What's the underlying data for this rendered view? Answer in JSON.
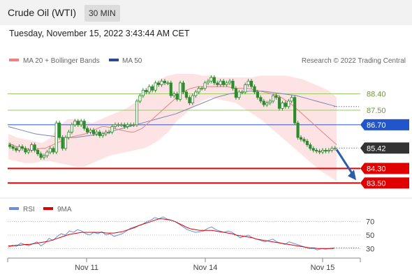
{
  "header": {
    "title": "Crude Oil (WTI)",
    "interval": "30 MIN"
  },
  "timestamp": "Tuesday, November 15, 2022 3:43:44 AM CET",
  "legend": {
    "ma20": "MA 20 + Bollinger Bands",
    "ma50": "MA 50",
    "copyright": "Research © 2022 Trading Central",
    "rsi": "RSI",
    "nine_ma": "9MA"
  },
  "colors": {
    "candle": "#2e8b2e",
    "ma20": "#f08080",
    "band": "#fde0e0",
    "ma50": "#7a86b8",
    "support": "#e00000",
    "pivot": "#2255cc",
    "resistance": "#99cc66",
    "rsi": "#6a8ee0",
    "rsi_ma": "#e00000",
    "arrow": "#2a5caa"
  },
  "chart_data": [
    {
      "type": "candlestick",
      "title": "Crude Oil (WTI)",
      "x_ticks": [
        "Nov 11",
        "Nov 14",
        "Nov 15"
      ],
      "ylim": [
        82.9,
        89.8
      ],
      "levels": [
        {
          "label": "88.40",
          "value": 88.4,
          "kind": "resistance"
        },
        {
          "label": "87.50",
          "value": 87.5,
          "kind": "resistance"
        },
        {
          "label": "86.70",
          "value": 86.7,
          "kind": "pivot"
        },
        {
          "label": "85.42",
          "value": 85.42,
          "kind": "last"
        },
        {
          "label": "84.30",
          "value": 84.3,
          "kind": "support"
        },
        {
          "label": "83.50",
          "value": 83.5,
          "kind": "support"
        }
      ],
      "close": [
        85.5,
        85.4,
        85.3,
        85.5,
        85.4,
        85.2,
        85.3,
        85.6,
        85.3,
        85.1,
        84.9,
        85.0,
        85.2,
        85.4,
        85.2,
        86.8,
        86.0,
        85.4,
        86.0,
        86.3,
        86.7,
        86.9,
        86.7,
        86.9,
        86.5,
        86.3,
        86.4,
        86.2,
        86.3,
        86.1,
        86.2,
        86.3,
        86.3,
        86.6,
        86.7,
        86.7,
        86.7,
        86.6,
        86.7,
        86.7,
        86.7,
        88.0,
        88.3,
        88.6,
        88.5,
        88.8,
        88.6,
        89.0,
        88.9,
        89.1,
        89.0,
        89.0,
        88.3,
        88.4,
        88.1,
        89.0,
        88.5,
        88.2,
        87.9,
        88.3,
        88.5,
        88.7,
        88.7,
        89.0,
        89.1,
        89.3,
        89.0,
        88.9,
        89.1,
        88.9,
        89.0,
        89.1,
        88.7,
        88.2,
        88.5,
        88.5,
        88.9,
        89.1,
        88.8,
        88.5,
        88.2,
        88.0,
        87.8,
        87.9,
        88.0,
        88.3,
        88.2,
        87.6,
        87.9,
        87.7,
        88.0,
        88.2,
        86.8,
        86.0,
        85.9,
        85.8,
        85.6,
        85.4,
        85.3,
        85.25,
        85.2,
        85.3,
        85.25,
        85.3,
        85.4,
        85.42
      ],
      "ma20": [
        85.7,
        85.6,
        85.5,
        85.45,
        85.4,
        85.35,
        85.3,
        85.35,
        85.4,
        85.4,
        85.5,
        85.6,
        85.7,
        85.8,
        85.9,
        86.0,
        86.05,
        86.1,
        86.15,
        86.2,
        86.3,
        86.4,
        86.5,
        86.6,
        86.6,
        86.55,
        86.5,
        86.45,
        86.4,
        86.35,
        86.3,
        86.3,
        86.4,
        86.5,
        86.7,
        86.9,
        87.1,
        87.3,
        87.5,
        87.7,
        87.9,
        88.1,
        88.3,
        88.45,
        88.6,
        88.7,
        88.75,
        88.8,
        88.8,
        88.8,
        88.8,
        88.8,
        88.8,
        88.8,
        88.8,
        88.75,
        88.7,
        88.7,
        88.7,
        88.7,
        88.65,
        88.6,
        88.55,
        88.5,
        88.45,
        88.4,
        88.35,
        88.25,
        88.1,
        87.95,
        87.8,
        87.6,
        87.4,
        87.2,
        87.0,
        86.8,
        86.6,
        86.4,
        86.2,
        86.0,
        85.8,
        85.6
      ],
      "ma50": [
        86.6,
        86.5,
        86.4,
        86.3,
        86.2,
        86.15,
        86.1,
        86.05,
        86.0,
        86.0,
        86.0,
        86.05,
        86.1,
        86.15,
        86.2,
        86.3,
        86.4,
        86.5,
        86.6,
        86.7,
        86.8,
        86.9,
        87.0,
        87.1,
        87.2,
        87.3,
        87.45,
        87.6,
        87.75,
        87.9,
        88.05,
        88.2,
        88.3,
        88.4,
        88.45,
        88.5,
        88.55,
        88.55,
        88.55,
        88.5,
        88.45,
        88.4,
        88.35,
        88.3,
        88.2,
        88.1,
        88.0,
        87.9,
        87.8,
        87.7
      ],
      "bollinger_upper": [
        86.2,
        86.0,
        85.9,
        85.8,
        85.7,
        86.0,
        86.6,
        87.0,
        87.0,
        86.9,
        86.8,
        87.0,
        87.2,
        87.4,
        87.6,
        87.9,
        88.3,
        88.8,
        89.2,
        89.4,
        89.5,
        89.5,
        89.5,
        89.4,
        89.4,
        89.3,
        89.3,
        89.3,
        89.3,
        89.3,
        89.4,
        89.4,
        89.4,
        89.4,
        89.3,
        89.2,
        89.0,
        88.8,
        88.6,
        88.2
      ],
      "bollinger_lower": [
        84.8,
        84.7,
        84.6,
        84.6,
        84.7,
        84.7,
        84.6,
        84.5,
        84.4,
        84.4,
        84.6,
        84.8,
        85.0,
        85.1,
        85.2,
        85.3,
        85.4,
        85.6,
        85.9,
        86.3,
        86.9,
        87.3,
        87.7,
        88.0,
        88.2,
        88.1,
        88.0,
        87.9,
        87.6,
        87.3,
        87.0,
        86.6,
        86.2,
        85.8,
        85.4,
        85.0,
        84.6,
        84.2,
        83.9,
        83.6
      ]
    },
    {
      "type": "line",
      "title": "RSI",
      "y_ticks": [
        70,
        50,
        30
      ],
      "ylim": [
        20,
        80
      ],
      "series": [
        {
          "name": "RSI",
          "values": [
            32,
            35,
            33,
            38,
            36,
            34,
            37,
            40,
            34,
            38,
            45,
            42,
            48,
            52,
            50,
            56,
            54,
            58,
            56,
            52,
            50,
            54,
            52,
            55,
            50,
            52,
            48,
            50,
            52,
            56,
            60,
            62,
            64,
            66,
            70,
            72,
            76,
            74,
            77,
            74,
            72,
            70,
            66,
            62,
            58,
            56,
            54,
            55,
            56,
            60,
            62,
            58,
            56,
            54,
            56,
            54,
            50,
            46,
            48,
            50,
            46,
            44,
            42,
            40,
            42,
            44,
            40,
            38,
            36,
            40,
            38,
            36,
            34,
            32,
            30,
            30,
            28,
            30,
            29,
            30,
            31
          ]
        },
        {
          "name": "9MA",
          "values": [
            34,
            34,
            35,
            35,
            36,
            36,
            37,
            38,
            39,
            40,
            41,
            43,
            45,
            47,
            49,
            51,
            52,
            53,
            54,
            54,
            54,
            54,
            54,
            54,
            53,
            53,
            53,
            54,
            55,
            57,
            59,
            61,
            64,
            66,
            68,
            70,
            72,
            74,
            74,
            73,
            72,
            70,
            67,
            64,
            61,
            59,
            58,
            57,
            57,
            57,
            57,
            56,
            55,
            54,
            53,
            52,
            50,
            49,
            48,
            47,
            46,
            44,
            43,
            42,
            41,
            40,
            39,
            38,
            37,
            36,
            35,
            34,
            33,
            32,
            31,
            31,
            30,
            30,
            30,
            30,
            30
          ]
        }
      ]
    }
  ]
}
